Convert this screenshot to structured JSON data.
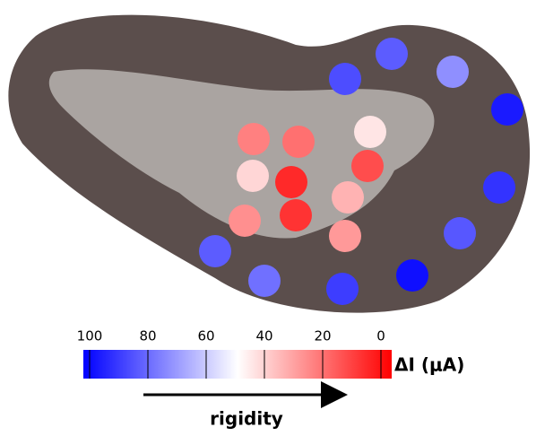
{
  "chart_data": {
    "type": "colormap",
    "values": [
      82,
      72,
      85,
      95,
      90,
      83,
      97,
      88,
      78,
      82,
      25,
      22,
      45,
      42,
      8,
      15,
      35,
      28,
      10,
      30
    ],
    "clim": [
      100,
      0
    ],
    "cticks": [
      100,
      80,
      60,
      40,
      20,
      0
    ],
    "colors": [
      "#0000ff",
      "#ffffff",
      "#ff0000"
    ],
    "colorbar_label": "ΔI (μA)",
    "arrow_label": "rigidity"
  }
}
